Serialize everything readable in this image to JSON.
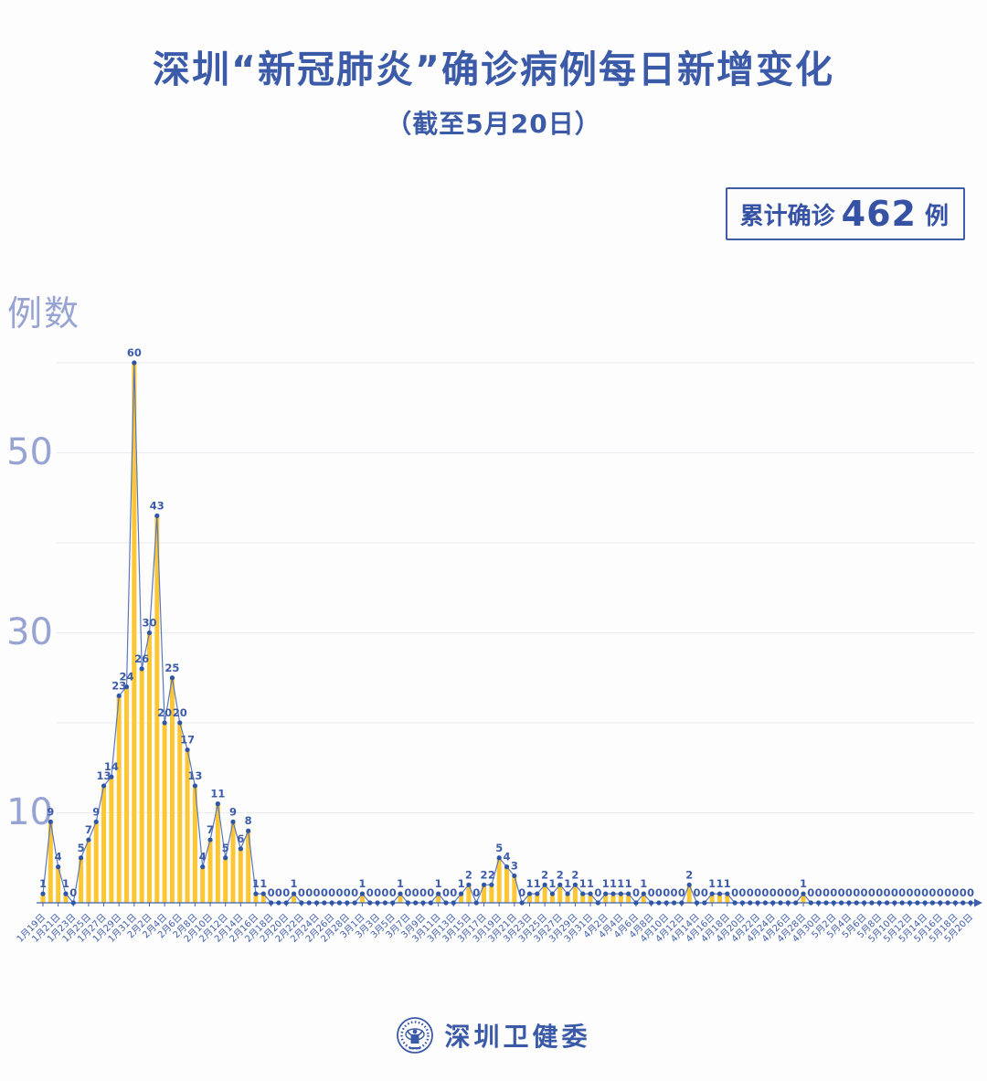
{
  "header": {
    "title": "深圳“新冠肺炎”确诊病例每日新增变化",
    "subtitle": "（截至5月20日）"
  },
  "badge": {
    "prefix": "累计确诊",
    "value": "462",
    "suffix": "例"
  },
  "chart": {
    "y_axis_title": "例数",
    "y_ticks": [
      "10",
      "30",
      "50"
    ]
  },
  "footer": {
    "org": "深圳卫健委"
  },
  "chart_data": {
    "type": "bar",
    "title": "深圳“新冠肺炎”确诊病例每日新增变化",
    "subtitle": "（截至5月20日）",
    "ylabel": "例数",
    "ylim": [
      0,
      62
    ],
    "y_gridlines": [
      10,
      20,
      30,
      40,
      50,
      60
    ],
    "y_tick_labels": [
      10,
      30,
      50
    ],
    "x_tick_every": 2,
    "cumulative_total": 462,
    "legend": "none",
    "grid": "horizontal",
    "colors": {
      "bar": "#fdc733",
      "line": "#5b78bf",
      "marker": "#2f55a5",
      "value_label": "#3c5ba9",
      "axis": "#4060ae",
      "accent": "#3b5aa8",
      "muted_axis_text": "#97a3d3",
      "gridline": "#ebebf1"
    },
    "x": [
      "1月19日",
      "1月20日",
      "1月21日",
      "1月22日",
      "1月23日",
      "1月24日",
      "1月25日",
      "1月26日",
      "1月27日",
      "1月28日",
      "1月29日",
      "1月30日",
      "1月31日",
      "2月1日",
      "2月2日",
      "2月3日",
      "2月4日",
      "2月5日",
      "2月6日",
      "2月7日",
      "2月8日",
      "2月9日",
      "2月10日",
      "2月11日",
      "2月12日",
      "2月13日",
      "2月14日",
      "2月15日",
      "2月16日",
      "2月17日",
      "2月18日",
      "2月19日",
      "2月20日",
      "2月21日",
      "2月22日",
      "2月23日",
      "2月24日",
      "2月25日",
      "2月26日",
      "2月27日",
      "2月28日",
      "2月29日",
      "3月1日",
      "3月2日",
      "3月3日",
      "3月4日",
      "3月5日",
      "3月6日",
      "3月7日",
      "3月8日",
      "3月9日",
      "3月10日",
      "3月11日",
      "3月12日",
      "3月13日",
      "3月14日",
      "3月15日",
      "3月16日",
      "3月17日",
      "3月18日",
      "3月19日",
      "3月20日",
      "3月21日",
      "3月22日",
      "3月23日",
      "3月24日",
      "3月25日",
      "3月26日",
      "3月27日",
      "3月28日",
      "3月29日",
      "3月30日",
      "3月31日",
      "4月1日",
      "4月2日",
      "4月3日",
      "4月4日",
      "4月5日",
      "4月6日",
      "4月7日",
      "4月8日",
      "4月9日",
      "4月10日",
      "4月11日",
      "4月12日",
      "4月13日",
      "4月14日",
      "4月15日",
      "4月16日",
      "4月17日",
      "4月18日",
      "4月19日",
      "4月20日",
      "4月21日",
      "4月22日",
      "4月23日",
      "4月24日",
      "4月25日",
      "4月26日",
      "4月27日",
      "4月28日",
      "4月29日",
      "4月30日",
      "5月1日",
      "5月2日",
      "5月3日",
      "5月4日",
      "5月5日",
      "5月6日",
      "5月7日",
      "5月8日",
      "5月9日",
      "5月10日",
      "5月11日",
      "5月12日",
      "5月13日",
      "5月14日",
      "5月15日",
      "5月16日",
      "5月17日",
      "5月18日",
      "5月19日",
      "5月20日"
    ],
    "values": [
      1,
      9,
      4,
      1,
      0,
      5,
      7,
      9,
      13,
      14,
      23,
      24,
      60,
      26,
      30,
      43,
      20,
      25,
      20,
      17,
      13,
      4,
      7,
      11,
      5,
      9,
      6,
      8,
      1,
      1,
      0,
      0,
      0,
      1,
      0,
      0,
      0,
      0,
      0,
      0,
      0,
      0,
      1,
      0,
      0,
      0,
      0,
      1,
      0,
      0,
      0,
      0,
      1,
      0,
      0,
      1,
      2,
      0,
      2,
      2,
      5,
      4,
      3,
      0,
      1,
      1,
      2,
      1,
      2,
      1,
      2,
      1,
      1,
      0,
      1,
      1,
      1,
      1,
      0,
      1,
      0,
      0,
      0,
      0,
      0,
      2,
      0,
      0,
      1,
      1,
      1,
      0,
      0,
      0,
      0,
      0,
      0,
      0,
      0,
      0,
      1,
      0,
      0,
      0,
      0,
      0,
      0,
      0,
      0,
      0,
      0,
      0,
      0,
      0,
      0,
      0,
      0,
      0,
      0,
      0,
      0,
      0,
      0
    ]
  }
}
